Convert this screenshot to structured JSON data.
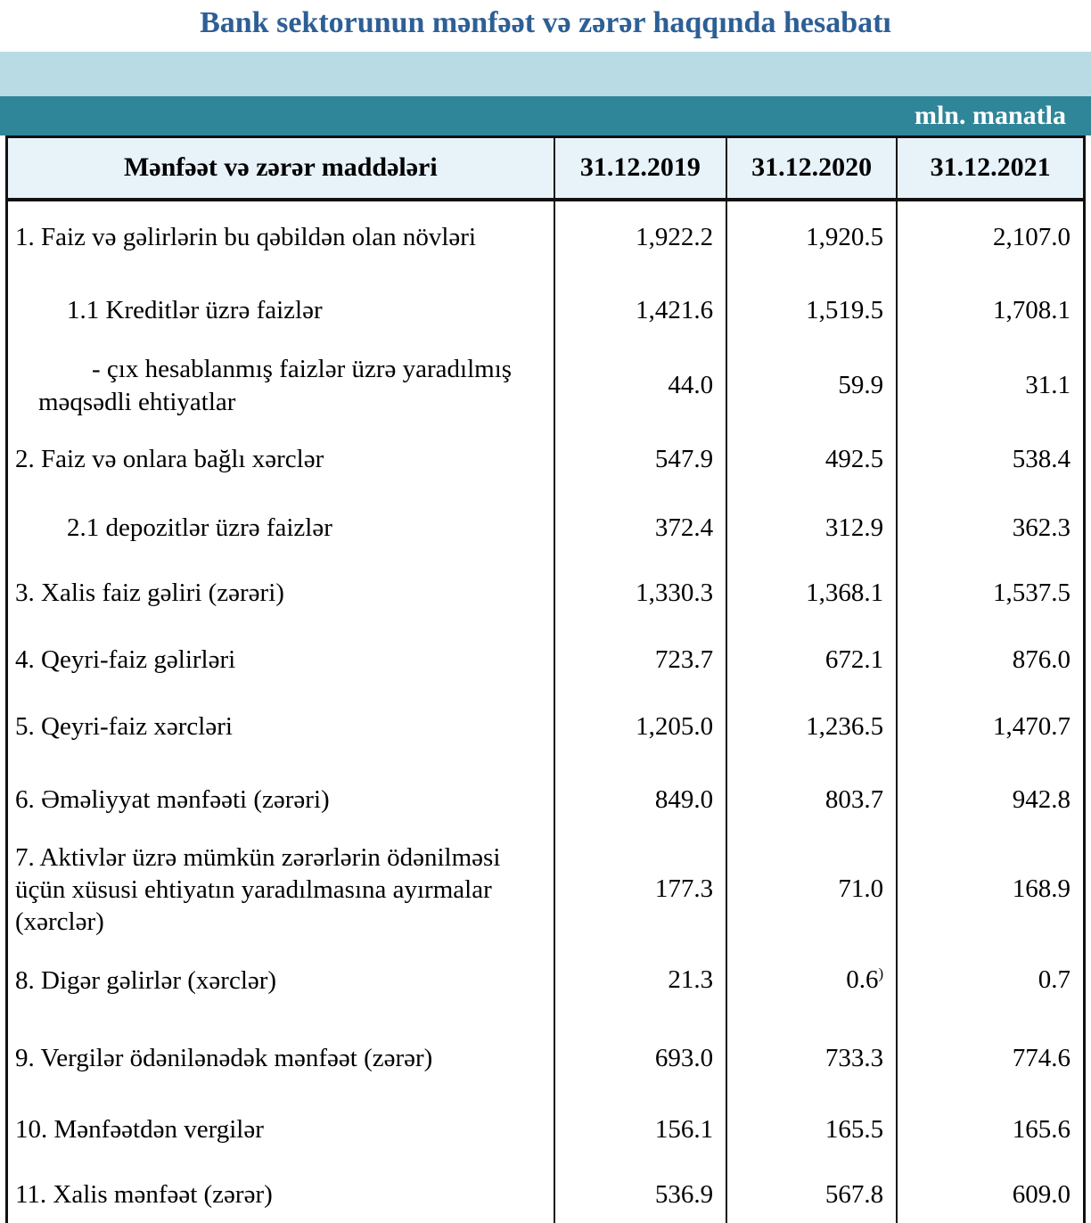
{
  "title": "Bank sektorunun mənfəət və zərər haqqında hesabatı",
  "unit_label": "mln. manatla",
  "colors": {
    "title_text": "#2d5f96",
    "band_light": "#b9dce4",
    "band_teal": "#2f8699",
    "header_bg": "#e7f2f9",
    "border": "#111111"
  },
  "table": {
    "header": {
      "label": "Mənfəət və zərər maddələri",
      "columns": [
        "31.12.2019",
        "31.12.2020",
        "31.12.2021"
      ]
    },
    "rows": [
      {
        "label": "1. Faiz və gəlirlərin bu qəbildən olan növləri",
        "indent": 0,
        "values": [
          "1,922.2",
          "1,920.5",
          "2,107.0"
        ]
      },
      {
        "label": "1.1 Kreditlər üzrə faizlər",
        "indent": 1,
        "values": [
          "1,421.6",
          "1,519.5",
          "1,708.1"
        ]
      },
      {
        "label": "-  çıx hesablanmış faizlər üzrə yaradılmış məqsədli ehtiyatlar",
        "indent": 2,
        "values": [
          "44.0",
          "59.9",
          "31.1"
        ]
      },
      {
        "label": "2. Faiz və onlara bağlı xərclər",
        "indent": 0,
        "values": [
          "547.9",
          "492.5",
          "538.4"
        ]
      },
      {
        "label": "2.1 depozitlər üzrə faizlər",
        "indent": 1,
        "values": [
          "372.4",
          "312.9",
          "362.3"
        ]
      },
      {
        "label": "3. Xalis faiz gəliri (zərəri)",
        "indent": 0,
        "values": [
          "1,330.3",
          "1,368.1",
          "1,537.5"
        ]
      },
      {
        "label": "4. Qeyri-faiz gəlirləri",
        "indent": 0,
        "values": [
          "723.7",
          "672.1",
          "876.0"
        ]
      },
      {
        "label": "5. Qeyri-faiz xərcləri",
        "indent": 0,
        "values": [
          "1,205.0",
          "1,236.5",
          "1,470.7"
        ]
      },
      {
        "label": "6. Əməliyyat mənfəəti (zərəri)",
        "indent": 0,
        "values": [
          "849.0",
          "803.7",
          "942.8"
        ]
      },
      {
        "label": "7. Aktivlər üzrə mümkün zərərlərin ödənilməsi üçün xüsusi ehtiyatın yaradılmasına ayırmalar (xərclər)",
        "indent": 0,
        "values": [
          "177.3",
          "71.0",
          "168.9"
        ]
      },
      {
        "label": "8. Digər gəlirlər (xərclər)",
        "indent": 0,
        "values": [
          "21.3",
          "0.6",
          "0.7"
        ],
        "footnote": {
          "col": 1,
          "mark": ")"
        }
      },
      {
        "label": "9. Vergilər ödənilənədək mənfəət (zərər)",
        "indent": 0,
        "values": [
          "693.0",
          "733.3",
          "774.6"
        ]
      },
      {
        "label": "10. Mənfəətdən vergilər",
        "indent": 0,
        "values": [
          "156.1",
          "165.5",
          "165.6"
        ]
      },
      {
        "label": "11. Xalis mənfəət (zərər)",
        "indent": 0,
        "values": [
          "536.9",
          "567.8",
          "609.0"
        ]
      }
    ]
  }
}
